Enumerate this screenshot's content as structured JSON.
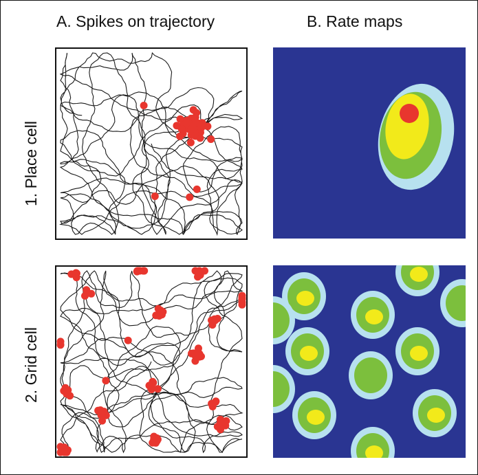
{
  "columns": {
    "a": "A. Spikes on trajectory",
    "b": "B. Rate maps"
  },
  "rows": {
    "place": "1. Place cell",
    "grid": "2. Grid cell"
  },
  "colors": {
    "trajectory": "#1a1a1a",
    "spike": "#e8362e",
    "rate_background": "#2a3592",
    "rate_levels": [
      "#b7e1ef",
      "#7cbf3d",
      "#f2ea1a",
      "#e8362e"
    ]
  },
  "place_cell": {
    "field": {
      "level": 4
    },
    "spike_count": 45
  },
  "grid_cell": {
    "field_count": 17,
    "spike_count": 110
  }
}
